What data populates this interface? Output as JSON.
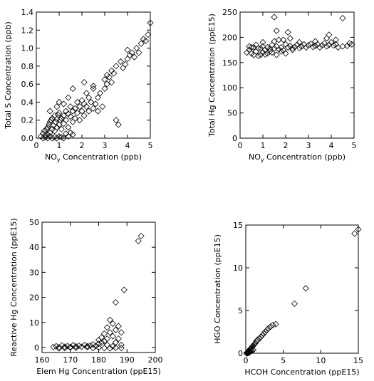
{
  "colors": {
    "background": "#ffffff",
    "ink": "#000000"
  },
  "chart_data": [
    {
      "type": "scatter",
      "marker": "diamond-open",
      "xlabel_parts": [
        "NO",
        "y",
        " Concentration (ppb)"
      ],
      "ylabel": "Total S  Concentration (ppb)",
      "xlim": [
        0,
        5
      ],
      "ylim": [
        0,
        1.4
      ],
      "xticks": [
        0,
        1,
        2,
        3,
        4,
        5
      ],
      "xtick_labels": [
        "0",
        "1",
        "2",
        "3",
        "4",
        "5"
      ],
      "yticks": [
        0,
        0.2,
        0.4,
        0.6,
        0.8,
        1.0,
        1.2,
        1.4
      ],
      "ytick_labels": [
        "0.0",
        "0.2",
        "0.4",
        "0.6",
        "0.8",
        "1.0",
        "1.2",
        "1.4"
      ],
      "points": [
        [
          0.2,
          0.02
        ],
        [
          0.3,
          0.05
        ],
        [
          0.35,
          0.08
        ],
        [
          0.4,
          0.03
        ],
        [
          0.45,
          0.1
        ],
        [
          0.5,
          0.12
        ],
        [
          0.5,
          0.04
        ],
        [
          0.55,
          0.15
        ],
        [
          0.6,
          0.18
        ],
        [
          0.6,
          0.06
        ],
        [
          0.65,
          0.2
        ],
        [
          0.7,
          0.1
        ],
        [
          0.7,
          0.22
        ],
        [
          0.75,
          0.14
        ],
        [
          0.8,
          0.25
        ],
        [
          0.8,
          0.08
        ],
        [
          0.85,
          0.18
        ],
        [
          0.9,
          0.21
        ],
        [
          0.9,
          0.12
        ],
        [
          0.95,
          0.26
        ],
        [
          1.0,
          0.15
        ],
        [
          1.0,
          0.28
        ],
        [
          1.05,
          0.2
        ],
        [
          1.1,
          0.22
        ],
        [
          1.1,
          0.1
        ],
        [
          1.2,
          0.25
        ],
        [
          1.2,
          0.16
        ],
        [
          1.3,
          0.3
        ],
        [
          1.3,
          0.2
        ],
        [
          1.4,
          0.27
        ],
        [
          1.4,
          0.12
        ],
        [
          1.5,
          0.24
        ],
        [
          1.5,
          0.35
        ],
        [
          1.6,
          0.3
        ],
        [
          1.6,
          0.18
        ],
        [
          1.7,
          0.22
        ],
        [
          1.7,
          0.33
        ],
        [
          1.8,
          0.28
        ],
        [
          1.8,
          0.4
        ],
        [
          1.9,
          0.35
        ],
        [
          1.9,
          0.2
        ],
        [
          2.0,
          0.3
        ],
        [
          2.0,
          0.42
        ],
        [
          2.1,
          0.38
        ],
        [
          2.1,
          0.25
        ],
        [
          2.2,
          0.35
        ],
        [
          2.2,
          0.5
        ],
        [
          2.3,
          0.3
        ],
        [
          2.3,
          0.45
        ],
        [
          2.4,
          0.4
        ],
        [
          2.5,
          0.33
        ],
        [
          2.5,
          0.55
        ],
        [
          2.6,
          0.38
        ],
        [
          2.7,
          0.45
        ],
        [
          2.7,
          0.3
        ],
        [
          2.8,
          0.5
        ],
        [
          2.9,
          0.35
        ],
        [
          3.0,
          0.55
        ],
        [
          3.0,
          0.65
        ],
        [
          3.1,
          0.6
        ],
        [
          3.1,
          0.7
        ],
        [
          3.2,
          0.68
        ],
        [
          3.3,
          0.75
        ],
        [
          3.3,
          0.62
        ],
        [
          3.4,
          0.72
        ],
        [
          3.5,
          0.2
        ],
        [
          3.6,
          0.15
        ],
        [
          3.5,
          0.8
        ],
        [
          3.7,
          0.85
        ],
        [
          3.8,
          0.78
        ],
        [
          3.9,
          0.82
        ],
        [
          4.0,
          0.88
        ],
        [
          4.0,
          0.98
        ],
        [
          4.1,
          0.92
        ],
        [
          4.2,
          0.95
        ],
        [
          4.3,
          0.9
        ],
        [
          4.4,
          1.0
        ],
        [
          4.5,
          0.95
        ],
        [
          4.6,
          1.05
        ],
        [
          4.7,
          1.1
        ],
        [
          4.8,
          1.08
        ],
        [
          4.9,
          1.15
        ],
        [
          5.0,
          1.28
        ],
        [
          0.3,
          0.0
        ],
        [
          0.4,
          0.01
        ],
        [
          0.5,
          0.0
        ],
        [
          0.6,
          0.02
        ],
        [
          0.7,
          0.0
        ],
        [
          0.8,
          0.01
        ],
        [
          0.9,
          0.0
        ],
        [
          1.0,
          0.02
        ],
        [
          1.1,
          0.01
        ],
        [
          1.2,
          0.0
        ],
        [
          1.3,
          0.05
        ],
        [
          1.4,
          0.02
        ],
        [
          1.5,
          0.06
        ],
        [
          1.6,
          0.04
        ],
        [
          0.6,
          0.3
        ],
        [
          1.0,
          0.4
        ],
        [
          1.4,
          0.45
        ],
        [
          1.6,
          0.55
        ],
        [
          2.1,
          0.62
        ],
        [
          2.5,
          0.58
        ],
        [
          0.9,
          0.35
        ],
        [
          1.2,
          0.38
        ]
      ]
    },
    {
      "type": "scatter",
      "marker": "diamond-open",
      "xlabel_parts": [
        "NO",
        "y",
        " Concentration (ppb)"
      ],
      "ylabel": "Total   Hg   Concentration (ppE15)",
      "xlim": [
        0,
        5
      ],
      "ylim": [
        0,
        250
      ],
      "xticks": [
        0,
        1,
        2,
        3,
        4,
        5
      ],
      "xtick_labels": [
        "0",
        "1",
        "2",
        "3",
        "4",
        "5"
      ],
      "yticks": [
        0,
        50,
        100,
        150,
        200,
        250
      ],
      "ytick_labels": [
        "0",
        "50",
        "100",
        "150",
        "200",
        "250"
      ],
      "points": [
        [
          0.3,
          170
        ],
        [
          0.4,
          175
        ],
        [
          0.5,
          168
        ],
        [
          0.6,
          180
        ],
        [
          0.7,
          172
        ],
        [
          0.8,
          178
        ],
        [
          0.9,
          165
        ],
        [
          1.0,
          182
        ],
        [
          1.0,
          170
        ],
        [
          1.1,
          175
        ],
        [
          1.2,
          180
        ],
        [
          1.3,
          172
        ],
        [
          1.4,
          185
        ],
        [
          1.5,
          178
        ],
        [
          1.6,
          182
        ],
        [
          1.7,
          176
        ],
        [
          1.8,
          180
        ],
        [
          1.9,
          174
        ],
        [
          2.0,
          186
        ],
        [
          2.1,
          180
        ],
        [
          2.2,
          183
        ],
        [
          2.3,
          178
        ],
        [
          2.4,
          181
        ],
        [
          2.5,
          185
        ],
        [
          2.6,
          179
        ],
        [
          2.7,
          182
        ],
        [
          2.8,
          186
        ],
        [
          2.9,
          180
        ],
        [
          3.0,
          184
        ],
        [
          3.1,
          187
        ],
        [
          3.2,
          181
        ],
        [
          3.3,
          183
        ],
        [
          3.4,
          186
        ],
        [
          3.5,
          180
        ],
        [
          3.6,
          184
        ],
        [
          3.7,
          188
        ],
        [
          3.8,
          182
        ],
        [
          3.9,
          185
        ],
        [
          4.0,
          190
        ],
        [
          4.1,
          184
        ],
        [
          4.2,
          186
        ],
        [
          4.3,
          180
        ],
        [
          4.5,
          182
        ],
        [
          4.7,
          183
        ],
        [
          4.9,
          186
        ],
        [
          1.5,
          240
        ],
        [
          4.5,
          238
        ],
        [
          1.6,
          213
        ],
        [
          2.1,
          210
        ],
        [
          3.9,
          205
        ],
        [
          0.5,
          180
        ],
        [
          0.7,
          185
        ],
        [
          0.9,
          178
        ],
        [
          1.2,
          168
        ],
        [
          1.4,
          170
        ],
        [
          1.6,
          165
        ],
        [
          1.8,
          172
        ],
        [
          2.0,
          168
        ],
        [
          2.3,
          175
        ],
        [
          0.6,
          165
        ],
        [
          0.8,
          163
        ],
        [
          1.1,
          166
        ],
        [
          1.3,
          177
        ],
        [
          1.7,
          195
        ],
        [
          2.2,
          198
        ],
        [
          1.9,
          195
        ],
        [
          2.6,
          190
        ],
        [
          3.3,
          192
        ],
        [
          3.8,
          198
        ],
        [
          4.2,
          195
        ],
        [
          4.8,
          188
        ],
        [
          0.4,
          182
        ],
        [
          1.0,
          190
        ],
        [
          1.5,
          192
        ]
      ]
    },
    {
      "type": "scatter",
      "marker": "diamond-open",
      "xlabel_parts": [
        "Elem  Hg",
        "",
        "      Concentration  (ppE15)"
      ],
      "ylabel": "Reactive  Hg   Concentration (ppE15)",
      "xlim": [
        160,
        200
      ],
      "ylim": [
        -2,
        50
      ],
      "xticks": [
        160,
        170,
        180,
        190,
        200
      ],
      "xtick_labels": [
        "160",
        "170",
        "180",
        "190",
        "200"
      ],
      "yticks": [
        0,
        10,
        20,
        30,
        40,
        50
      ],
      "ytick_labels": [
        "0",
        "10",
        "20",
        "30",
        "40",
        "50"
      ],
      "points": [
        [
          164,
          0.2
        ],
        [
          165,
          0.5
        ],
        [
          166,
          0.1
        ],
        [
          167,
          0.8
        ],
        [
          168,
          0.3
        ],
        [
          169,
          0.6
        ],
        [
          170,
          0.2
        ],
        [
          171,
          0.9
        ],
        [
          172,
          0.4
        ],
        [
          173,
          0.7
        ],
        [
          174,
          0.3
        ],
        [
          175,
          1.0
        ],
        [
          176,
          0.5
        ],
        [
          177,
          0.8
        ],
        [
          178,
          1.2
        ],
        [
          179,
          0.6
        ],
        [
          180,
          1.5
        ],
        [
          180,
          3.0
        ],
        [
          181,
          2.0
        ],
        [
          181,
          4.0
        ],
        [
          182,
          2.5
        ],
        [
          182,
          5.5
        ],
        [
          183,
          3.5
        ],
        [
          183,
          8.0
        ],
        [
          184,
          6.0
        ],
        [
          184,
          11.0
        ],
        [
          185,
          9.5
        ],
        [
          185,
          4.5
        ],
        [
          186,
          7.0
        ],
        [
          186,
          2.0
        ],
        [
          187,
          8.5
        ],
        [
          187,
          3.5
        ],
        [
          188,
          6.0
        ],
        [
          188,
          1.0
        ],
        [
          189,
          23.0
        ],
        [
          186,
          18.0
        ],
        [
          194,
          42.5
        ],
        [
          195,
          44.5
        ],
        [
          183,
          1.0
        ],
        [
          185,
          0.5
        ],
        [
          166,
          -0.3
        ],
        [
          168,
          -0.2
        ],
        [
          170,
          0.0
        ],
        [
          172,
          -0.1
        ],
        [
          176,
          0.1
        ],
        [
          178,
          -0.2
        ],
        [
          184,
          -0.3
        ],
        [
          186,
          -0.1
        ],
        [
          188,
          -0.2
        ],
        [
          182,
          -0.2
        ],
        [
          180,
          0.0
        ]
      ]
    },
    {
      "type": "scatter",
      "marker": "diamond-open",
      "xlabel_parts": [
        "HCOH",
        "",
        "         Concentration (ppE15)"
      ],
      "ylabel": "HGO                         Concentration (ppE15)",
      "xlim": [
        0,
        15
      ],
      "ylim": [
        0,
        15
      ],
      "xticks": [
        0,
        5,
        10,
        15
      ],
      "xtick_labels": [
        "0",
        "5",
        "10",
        "15"
      ],
      "yticks": [
        0,
        5,
        10,
        15
      ],
      "ytick_labels": [
        "0",
        "5",
        "10",
        "15"
      ],
      "points": [
        [
          0.2,
          0.1
        ],
        [
          0.3,
          0.2
        ],
        [
          0.4,
          0.3
        ],
        [
          0.5,
          0.3
        ],
        [
          0.6,
          0.5
        ],
        [
          0.7,
          0.6
        ],
        [
          0.8,
          0.7
        ],
        [
          0.9,
          0.8
        ],
        [
          1.0,
          0.9
        ],
        [
          1.1,
          1.0
        ],
        [
          1.2,
          1.1
        ],
        [
          1.3,
          1.2
        ],
        [
          1.4,
          1.4
        ],
        [
          1.5,
          1.5
        ],
        [
          1.6,
          1.6
        ],
        [
          1.8,
          1.7
        ],
        [
          2.0,
          1.9
        ],
        [
          2.2,
          2.1
        ],
        [
          2.4,
          2.3
        ],
        [
          2.6,
          2.5
        ],
        [
          2.8,
          2.7
        ],
        [
          3.0,
          2.9
        ],
        [
          3.3,
          3.1
        ],
        [
          3.6,
          3.3
        ],
        [
          4.0,
          3.4
        ],
        [
          6.5,
          5.8
        ],
        [
          8.0,
          7.6
        ],
        [
          14.5,
          14.0
        ],
        [
          15.0,
          14.5
        ],
        [
          0.1,
          0.0
        ],
        [
          0.2,
          0.0
        ],
        [
          0.3,
          0.1
        ],
        [
          0.5,
          0.1
        ],
        [
          0.6,
          0.2
        ],
        [
          0.8,
          0.3
        ],
        [
          1.0,
          0.4
        ],
        [
          0.4,
          0.05
        ],
        [
          0.7,
          0.35
        ]
      ]
    }
  ]
}
